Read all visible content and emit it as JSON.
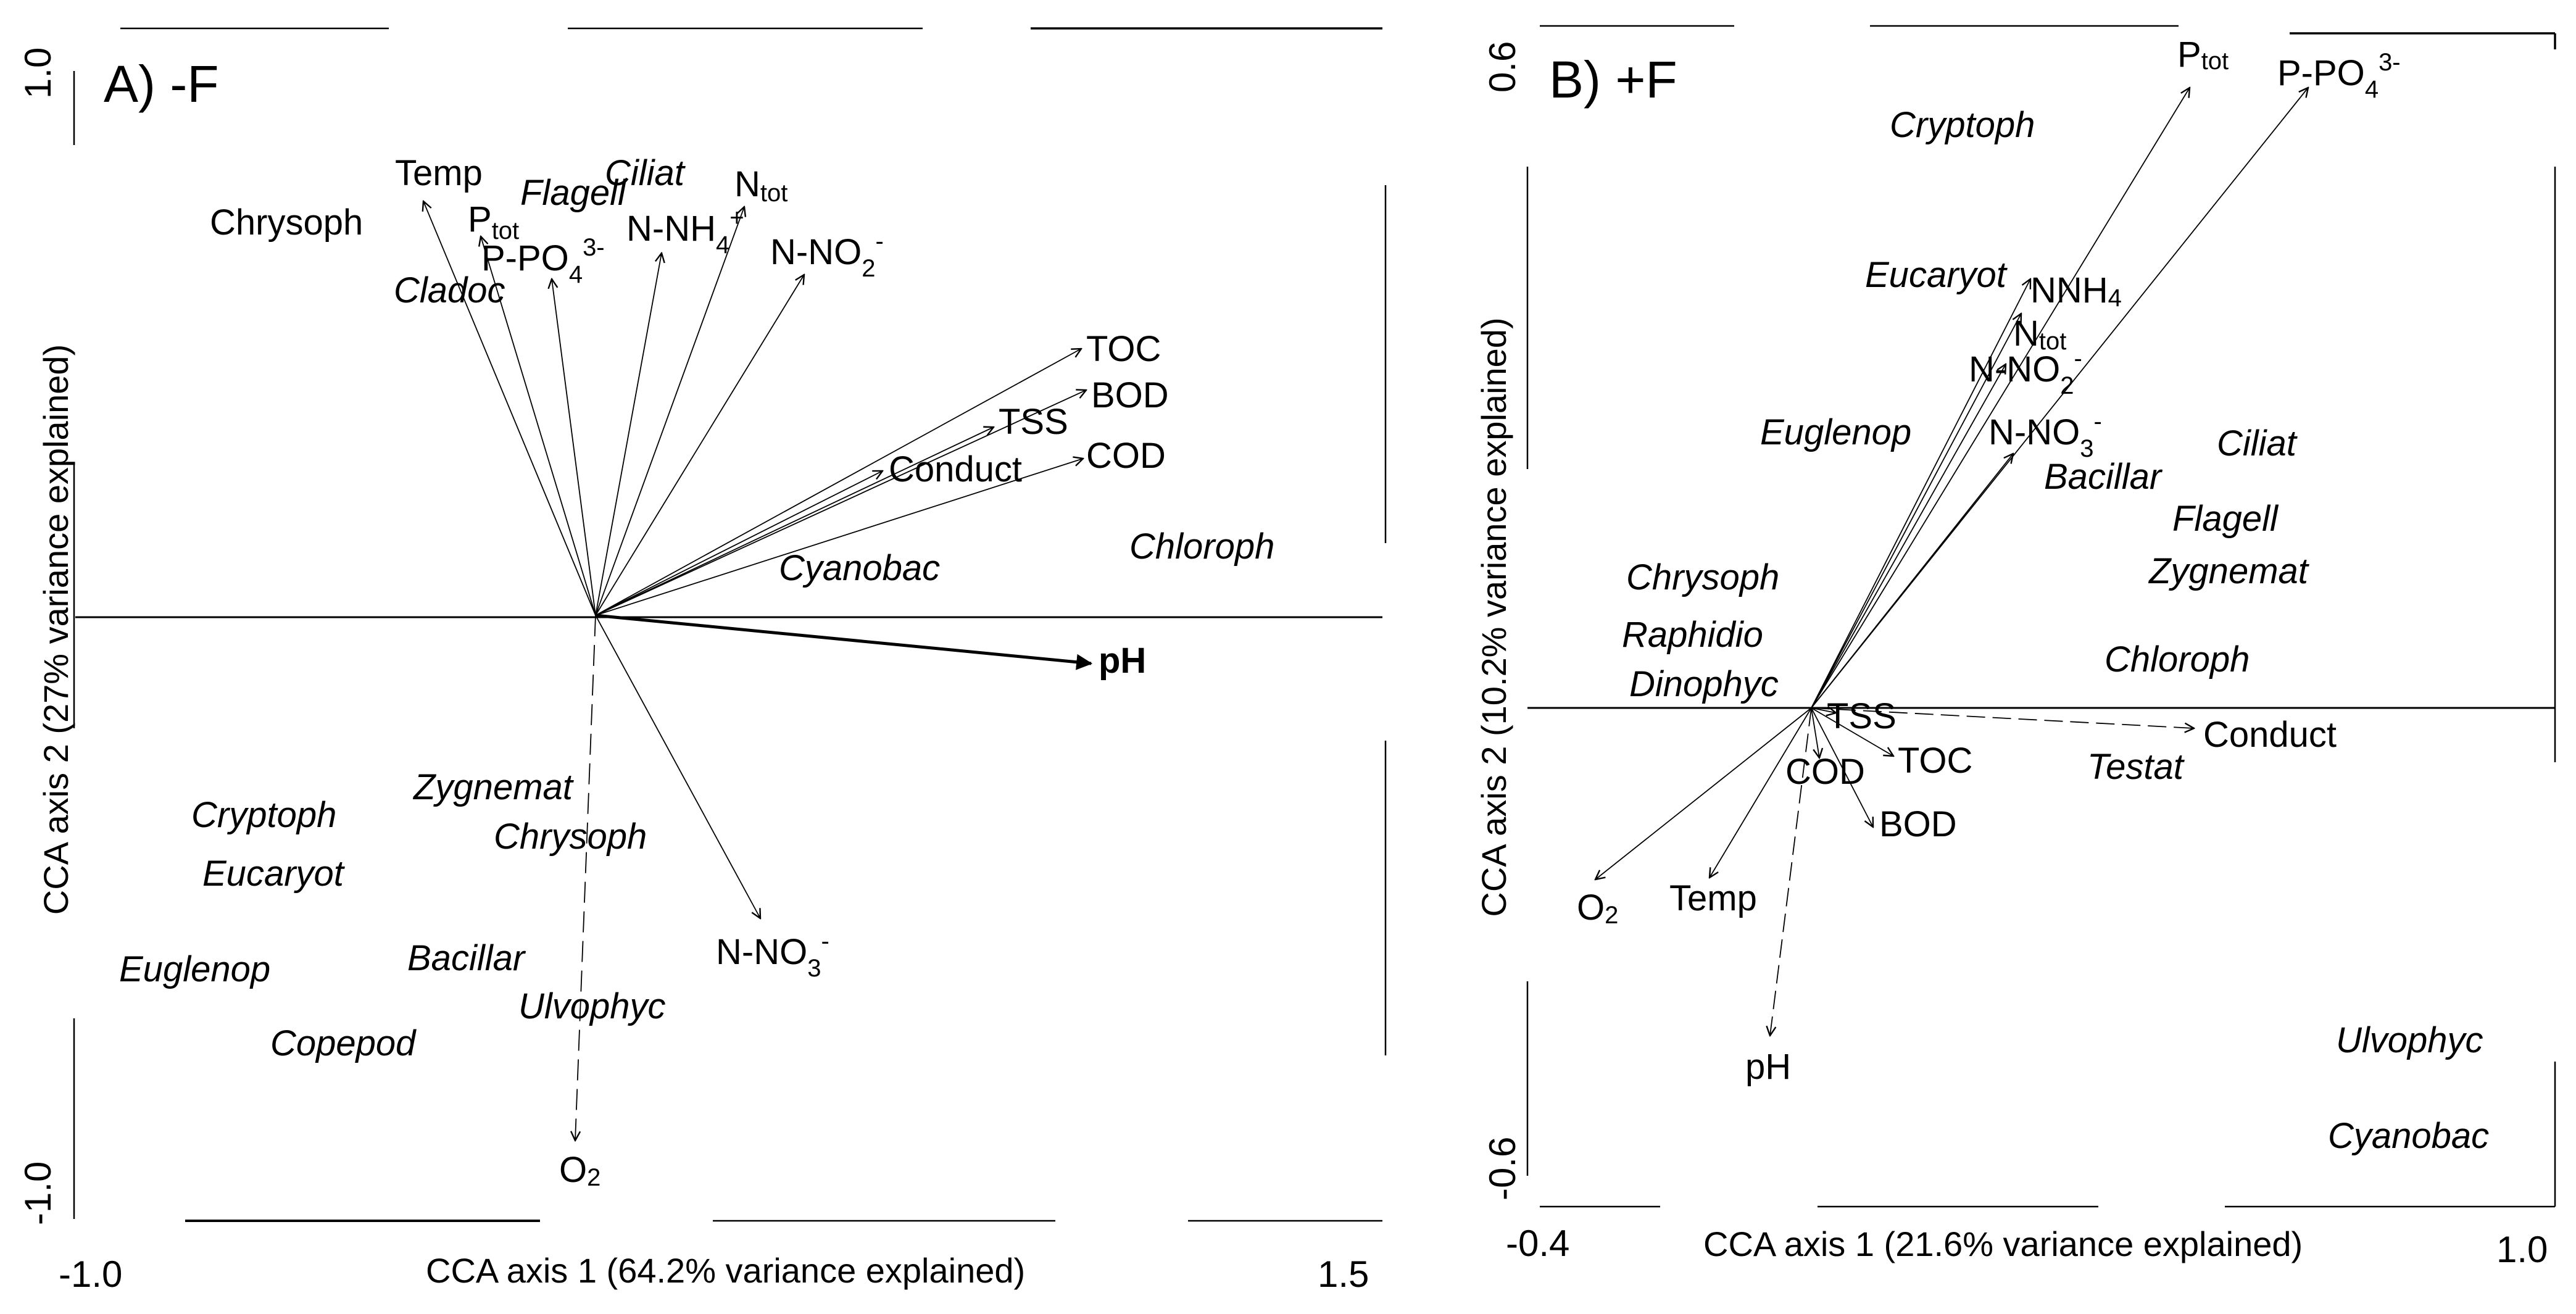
{
  "panels": [
    {
      "title": "A) -F",
      "xlabel": "CCA axis 1 (64.2% variance explained)",
      "ylabel": "CCA axis 2 (27% variance explained)",
      "xticks": [
        "-1.0",
        "1.5"
      ],
      "yticks": [
        "1.0",
        "-1.0"
      ]
    },
    {
      "title": "B) +F",
      "xlabel": "CCA axis 1 (21.6% variance explained)",
      "ylabel": "CCA axis 2 (10.2% variance explained)",
      "xticks": [
        "-0.4",
        "1.0"
      ],
      "yticks": [
        "0.6",
        "-0.6"
      ]
    }
  ],
  "chart_data": [
    {
      "type": "scatter",
      "subtype": "CCA biplot",
      "title": "A) -F",
      "xlabel": "CCA axis 1 (64.2% variance explained)",
      "ylabel": "CCA axis 2 (27% variance explained)",
      "xlim": [
        -1.0,
        1.5
      ],
      "ylim": [
        -1.0,
        1.0
      ],
      "environmental_vectors": [
        {
          "label": "Temp",
          "x": -0.32,
          "y": 0.73
        },
        {
          "label": "Ptot",
          "x": -0.22,
          "y": 0.67
        },
        {
          "label": "P-PO43-",
          "x": -0.08,
          "y": 0.6
        },
        {
          "label": "N-NH4+",
          "x": 0.13,
          "y": 0.66
        },
        {
          "label": "Ntot",
          "x": 0.29,
          "y": 0.73
        },
        {
          "label": "N-NO2-",
          "x": 0.39,
          "y": 0.61
        },
        {
          "label": "TOC",
          "x": 0.89,
          "y": 0.48
        },
        {
          "label": "BOD",
          "x": 0.89,
          "y": 0.4
        },
        {
          "label": "TSS",
          "x": 0.73,
          "y": 0.34
        },
        {
          "label": "COD",
          "x": 0.89,
          "y": 0.28
        },
        {
          "label": "Conduct",
          "x": 0.53,
          "y": 0.26
        },
        {
          "label": "pH",
          "x": 0.93,
          "y": -0.08
        },
        {
          "label": "N-NO3-",
          "x": 0.3,
          "y": -0.53
        },
        {
          "label": "O2",
          "x": -0.04,
          "y": -0.89
        }
      ],
      "taxa": [
        {
          "label": "Chrysoph",
          "x": -0.85,
          "y": 0.67
        },
        {
          "label": "Flagell",
          "x": -0.07,
          "y": 0.7
        },
        {
          "label": "Ciliat",
          "x": 0.09,
          "y": 0.76
        },
        {
          "label": "Cladoc",
          "x": -0.36,
          "y": 0.55
        },
        {
          "label": "Chloroph",
          "x": 1.1,
          "y": 0.12
        },
        {
          "label": "Cyanobac",
          "x": 0.43,
          "y": 0.08
        },
        {
          "label": "Zygnemat",
          "x": -0.29,
          "y": -0.29
        },
        {
          "label": "Chrysoph",
          "x": -0.19,
          "y": -0.37
        },
        {
          "label": "Cryptoph",
          "x": -0.82,
          "y": -0.33
        },
        {
          "label": "Eucaryot",
          "x": -0.77,
          "y": -0.43
        },
        {
          "label": "Euglenop",
          "x": -0.92,
          "y": -0.58
        },
        {
          "label": "Bacillar",
          "x": -0.37,
          "y": -0.56
        },
        {
          "label": "Ulvophyc",
          "x": -0.15,
          "y": -0.65
        },
        {
          "label": "Copepod",
          "x": -0.7,
          "y": -0.7
        }
      ]
    },
    {
      "type": "scatter",
      "subtype": "CCA biplot",
      "title": "B) +F",
      "xlabel": "CCA axis 1 (21.6% variance explained)",
      "ylabel": "CCA axis 2 (10.2% variance explained)",
      "xlim": [
        -0.4,
        1.0
      ],
      "ylim": [
        -0.6,
        0.6
      ],
      "environmental_vectors": [
        {
          "label": "Ptot",
          "x": 0.59,
          "y": 0.56
        },
        {
          "label": "P-PO43-",
          "x": 0.88,
          "y": 0.56
        },
        {
          "label": "NNH4",
          "x": 0.25,
          "y": 0.38
        },
        {
          "label": "Ntot",
          "x": 0.24,
          "y": 0.33
        },
        {
          "label": "N-NO2-",
          "x": 0.22,
          "y": 0.27
        },
        {
          "label": "N-NO3-",
          "x": 0.31,
          "y": 0.22
        },
        {
          "label": "TSS",
          "x": 0.04,
          "y": -0.01
        },
        {
          "label": "TOC",
          "x": 0.13,
          "y": -0.04
        },
        {
          "label": "COD",
          "x": 0.01,
          "y": -0.04
        },
        {
          "label": "BOD",
          "x": 0.08,
          "y": -0.09
        },
        {
          "label": "Conduct",
          "x": 0.55,
          "y": -0.02
        },
        {
          "label": "O2",
          "x": -0.32,
          "y": -0.15
        },
        {
          "label": "Temp",
          "x": -0.14,
          "y": -0.15
        },
        {
          "label": "pH",
          "x": -0.05,
          "y": -0.27
        }
      ],
      "taxa": [
        {
          "label": "Cryptoph",
          "x": 0.18,
          "y": 0.5
        },
        {
          "label": "Eucaryot",
          "x": 0.11,
          "y": 0.38
        },
        {
          "label": "Euglenop",
          "x": -0.08,
          "y": 0.24
        },
        {
          "label": "Ciliat",
          "x": 0.59,
          "y": 0.23
        },
        {
          "label": "Bacillar",
          "x": 0.34,
          "y": 0.2
        },
        {
          "label": "Flagell",
          "x": 0.58,
          "y": 0.16
        },
        {
          "label": "Zygnemat",
          "x": 0.57,
          "y": 0.12
        },
        {
          "label": "Chrysoph",
          "x": -0.18,
          "y": 0.11
        },
        {
          "label": "Raphidio",
          "x": -0.19,
          "y": 0.06
        },
        {
          "label": "Dinophyc",
          "x": -0.18,
          "y": 0.02
        },
        {
          "label": "Chloroph",
          "x": 0.5,
          "y": 0.04
        },
        {
          "label": "Testat",
          "x": 0.43,
          "y": -0.05
        },
        {
          "label": "Ulvophyc",
          "x": 0.92,
          "y": -0.43
        },
        {
          "label": "Cyanobac",
          "x": 0.92,
          "y": -0.56
        }
      ]
    }
  ]
}
